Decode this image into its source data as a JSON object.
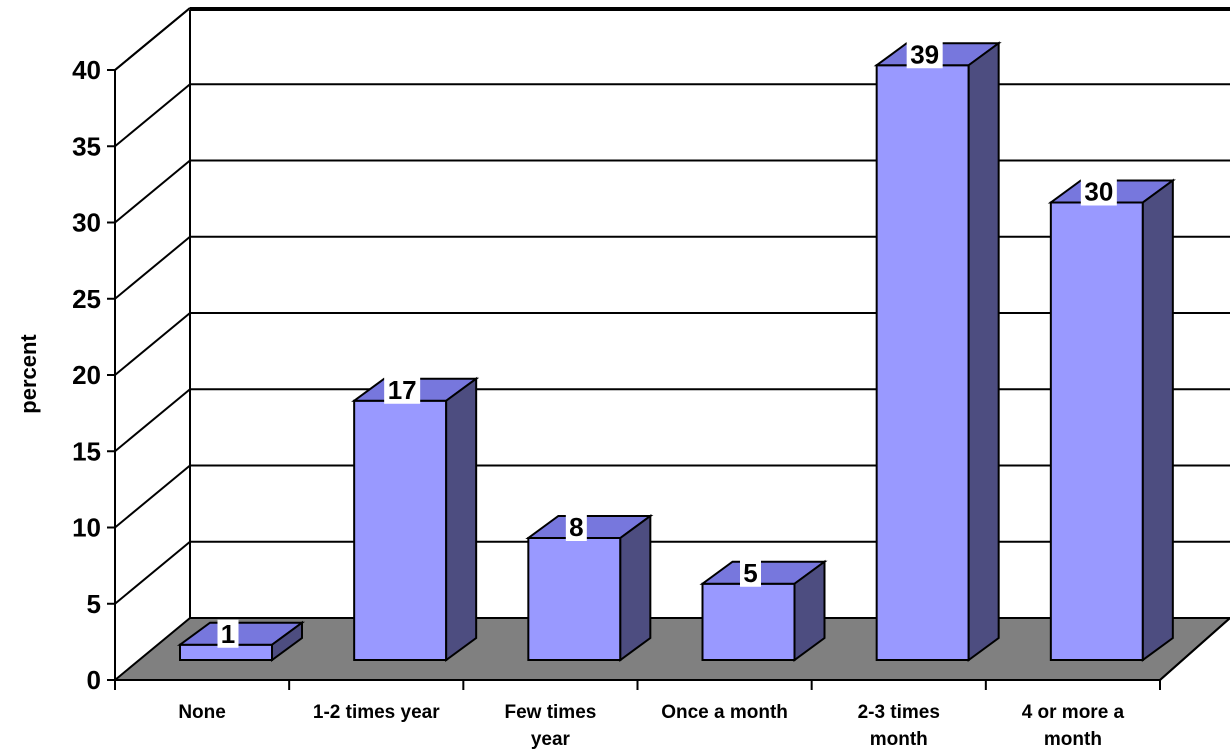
{
  "chart_data": {
    "type": "bar",
    "categories": [
      [
        "None"
      ],
      [
        "1-2 times year"
      ],
      [
        "Few times",
        "year"
      ],
      [
        "Once a month"
      ],
      [
        "2-3 times",
        "month"
      ],
      [
        "4 or more a",
        "month"
      ]
    ],
    "values": [
      1,
      17,
      8,
      5,
      39,
      30
    ],
    "data_labels": [
      "1",
      "17",
      "8",
      "5",
      "39",
      "30"
    ],
    "title": "",
    "xlabel": "",
    "ylabel": "percent",
    "ylim": [
      0,
      40
    ],
    "yticks": [
      0,
      5,
      10,
      15,
      20,
      25,
      30,
      35,
      40
    ],
    "grid": true,
    "three_d": true,
    "colors": {
      "bar_front": "#9999ff",
      "bar_top": "#7777dd",
      "bar_side": "#4d4d80",
      "floor": "#808080",
      "grid": "#000000"
    }
  }
}
